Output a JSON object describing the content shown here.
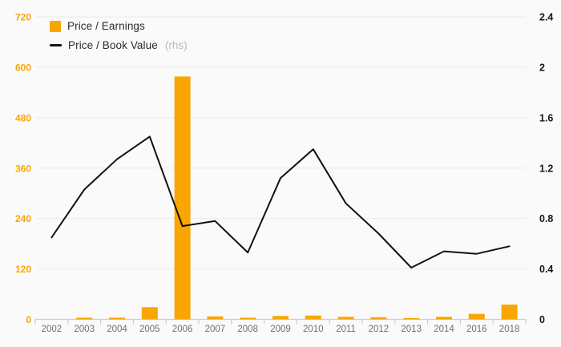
{
  "page": {
    "background": "#fafafa"
  },
  "legend": {
    "pe_label": "Price / Earnings",
    "pb_label": "Price / Book Value",
    "pb_suffix": "(rhs)"
  },
  "colors": {
    "bar": "#f9a602",
    "line": "#121212",
    "left_axis_label": "#f9a602",
    "right_axis_label": "#161616",
    "x_axis_label": "#6f6f6f",
    "grid": "#ebebeb",
    "axis": "#c6cdde"
  },
  "chart_data": {
    "type": "bar",
    "subtype": "bar+line combo",
    "categories": [
      "2002",
      "2003",
      "2004",
      "2005",
      "2006",
      "2007",
      "2008",
      "2009",
      "2010",
      "2011",
      "2012",
      "2013",
      "2014",
      "2016",
      "2018"
    ],
    "series": [
      {
        "name": "Price / Earnings",
        "type": "bar",
        "axis": "left",
        "values": [
          null,
          4,
          4,
          29,
          578,
          7,
          4,
          8,
          9,
          6,
          5,
          3,
          6,
          13,
          35
        ]
      },
      {
        "name": "Price / Book Value",
        "type": "line",
        "axis": "right",
        "values": [
          0.65,
          1.03,
          1.27,
          1.45,
          0.74,
          0.78,
          0.53,
          1.12,
          1.35,
          0.92,
          0.68,
          0.41,
          0.54,
          0.52,
          0.58
        ]
      }
    ],
    "left_axis": {
      "ticks": [
        0,
        120,
        240,
        360,
        480,
        600,
        720
      ],
      "range": [
        0,
        720
      ]
    },
    "right_axis": {
      "ticks": [
        0,
        0.4,
        0.8,
        1.2,
        1.6,
        2,
        2.4
      ],
      "range": [
        0,
        2.4
      ],
      "note": "rhs"
    },
    "grid": "horizontal",
    "legend_position": "top-left",
    "title": "",
    "xlabel": "",
    "ylabel": ""
  }
}
